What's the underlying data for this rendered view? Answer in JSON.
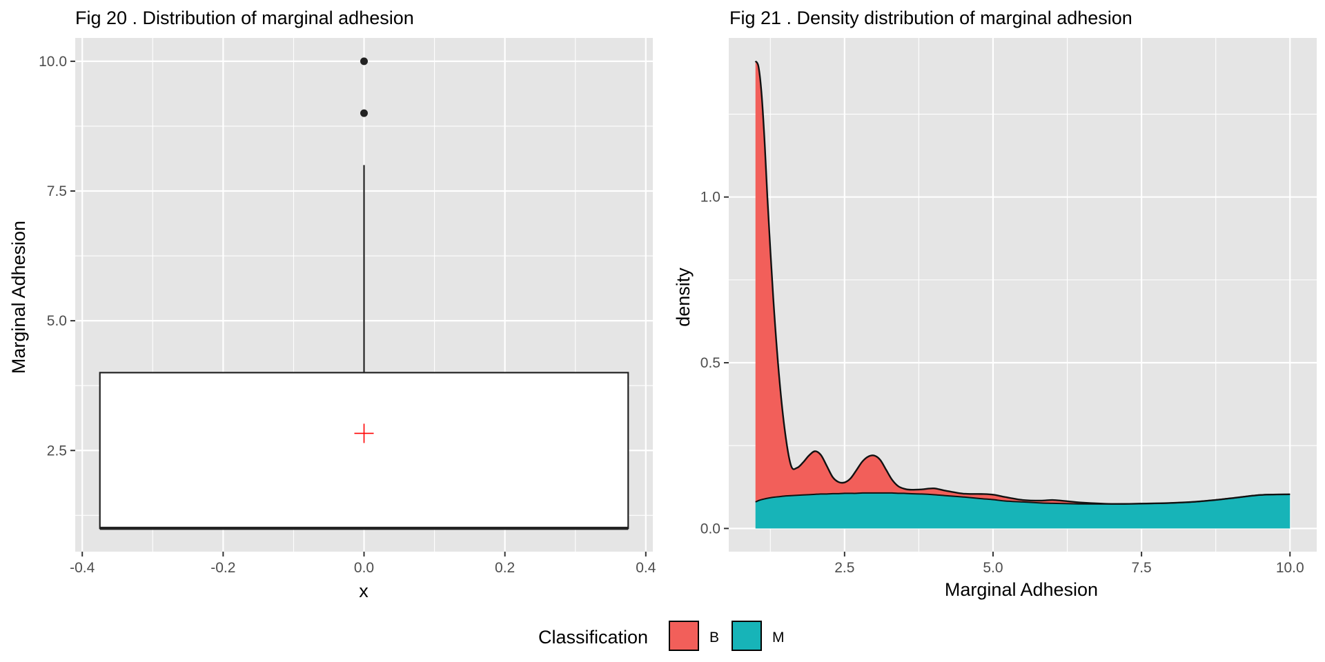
{
  "chart_data": [
    {
      "type": "box",
      "title": "Fig 20 . Distribution of marginal adhesion",
      "xlabel": "x",
      "ylabel": "Marginal Adhesion",
      "xlim": [
        -0.41,
        0.41
      ],
      "ylim": [
        0.55,
        10.45
      ],
      "x_ticks": [
        -0.4,
        -0.2,
        0.0,
        0.2,
        0.4
      ],
      "x_tick_labels": [
        "-0.4",
        "-0.2",
        "0.0",
        "0.2",
        "0.4"
      ],
      "y_ticks": [
        2.5,
        5.0,
        7.5,
        10.0
      ],
      "y_tick_labels": [
        "2.5",
        "5.0",
        "7.5",
        "10.0"
      ],
      "grid": true,
      "box": {
        "x": 0.0,
        "x_min": -0.375,
        "x_max": 0.375,
        "q1": 1.0,
        "median": 1.0,
        "q3": 4.0,
        "whisker_low": 1.0,
        "whisker_high": 8.0,
        "outliers": [
          9.0,
          10.0
        ]
      },
      "mean_marker": {
        "x": 0.0,
        "y": 2.83,
        "color": "#ff0000"
      }
    },
    {
      "type": "area",
      "title": "Fig 21 . Density distribution of marginal adhesion",
      "xlabel": "Marginal Adhesion",
      "ylabel": "density",
      "xlim": [
        0.55,
        10.45
      ],
      "ylim": [
        -0.07,
        1.48
      ],
      "x_ticks": [
        2.5,
        5.0,
        7.5,
        10.0
      ],
      "x_tick_labels": [
        "2.5",
        "5.0",
        "7.5",
        "10.0"
      ],
      "y_ticks": [
        0.0,
        0.5,
        1.0
      ],
      "y_tick_labels": [
        "0.0",
        "0.5",
        "1.0"
      ],
      "grid": true,
      "stacked": true,
      "legend_title": "Classification",
      "legend_position": "bottom",
      "x": [
        1.0,
        1.05,
        1.1,
        1.15,
        1.2,
        1.3,
        1.4,
        1.5,
        1.6,
        1.7,
        1.8,
        1.9,
        2.0,
        2.1,
        2.2,
        2.3,
        2.4,
        2.5,
        2.6,
        2.7,
        2.8,
        2.9,
        3.0,
        3.1,
        3.2,
        3.3,
        3.4,
        3.5,
        3.6,
        3.8,
        4.0,
        4.2,
        4.5,
        4.8,
        5.0,
        5.2,
        5.5,
        5.8,
        6.0,
        6.2,
        6.5,
        7.0,
        7.5,
        8.0,
        8.5,
        9.0,
        9.5,
        10.0
      ],
      "series": [
        {
          "name": "M",
          "color": "#17b4b8",
          "values": [
            0.08,
            0.084,
            0.087,
            0.089,
            0.091,
            0.094,
            0.096,
            0.098,
            0.099,
            0.1,
            0.101,
            0.102,
            0.103,
            0.104,
            0.104,
            0.105,
            0.105,
            0.106,
            0.106,
            0.106,
            0.107,
            0.107,
            0.107,
            0.107,
            0.107,
            0.107,
            0.106,
            0.106,
            0.105,
            0.104,
            0.102,
            0.099,
            0.095,
            0.09,
            0.087,
            0.083,
            0.08,
            0.077,
            0.076,
            0.075,
            0.074,
            0.074,
            0.075,
            0.077,
            0.082,
            0.091,
            0.101,
            0.103
          ]
        },
        {
          "name": "B",
          "color": "#f25f5a",
          "values": [
            1.33,
            1.31,
            1.23,
            1.09,
            0.91,
            0.6,
            0.36,
            0.19,
            0.09,
            0.083,
            0.098,
            0.118,
            0.13,
            0.118,
            0.085,
            0.05,
            0.035,
            0.033,
            0.045,
            0.07,
            0.095,
            0.11,
            0.113,
            0.1,
            0.07,
            0.04,
            0.022,
            0.014,
            0.012,
            0.014,
            0.019,
            0.015,
            0.01,
            0.014,
            0.015,
            0.012,
            0.006,
            0.007,
            0.01,
            0.008,
            0.004,
            0.0,
            0.0,
            0.0,
            0.0,
            0.0,
            0.0,
            0.0
          ]
        }
      ]
    }
  ]
}
